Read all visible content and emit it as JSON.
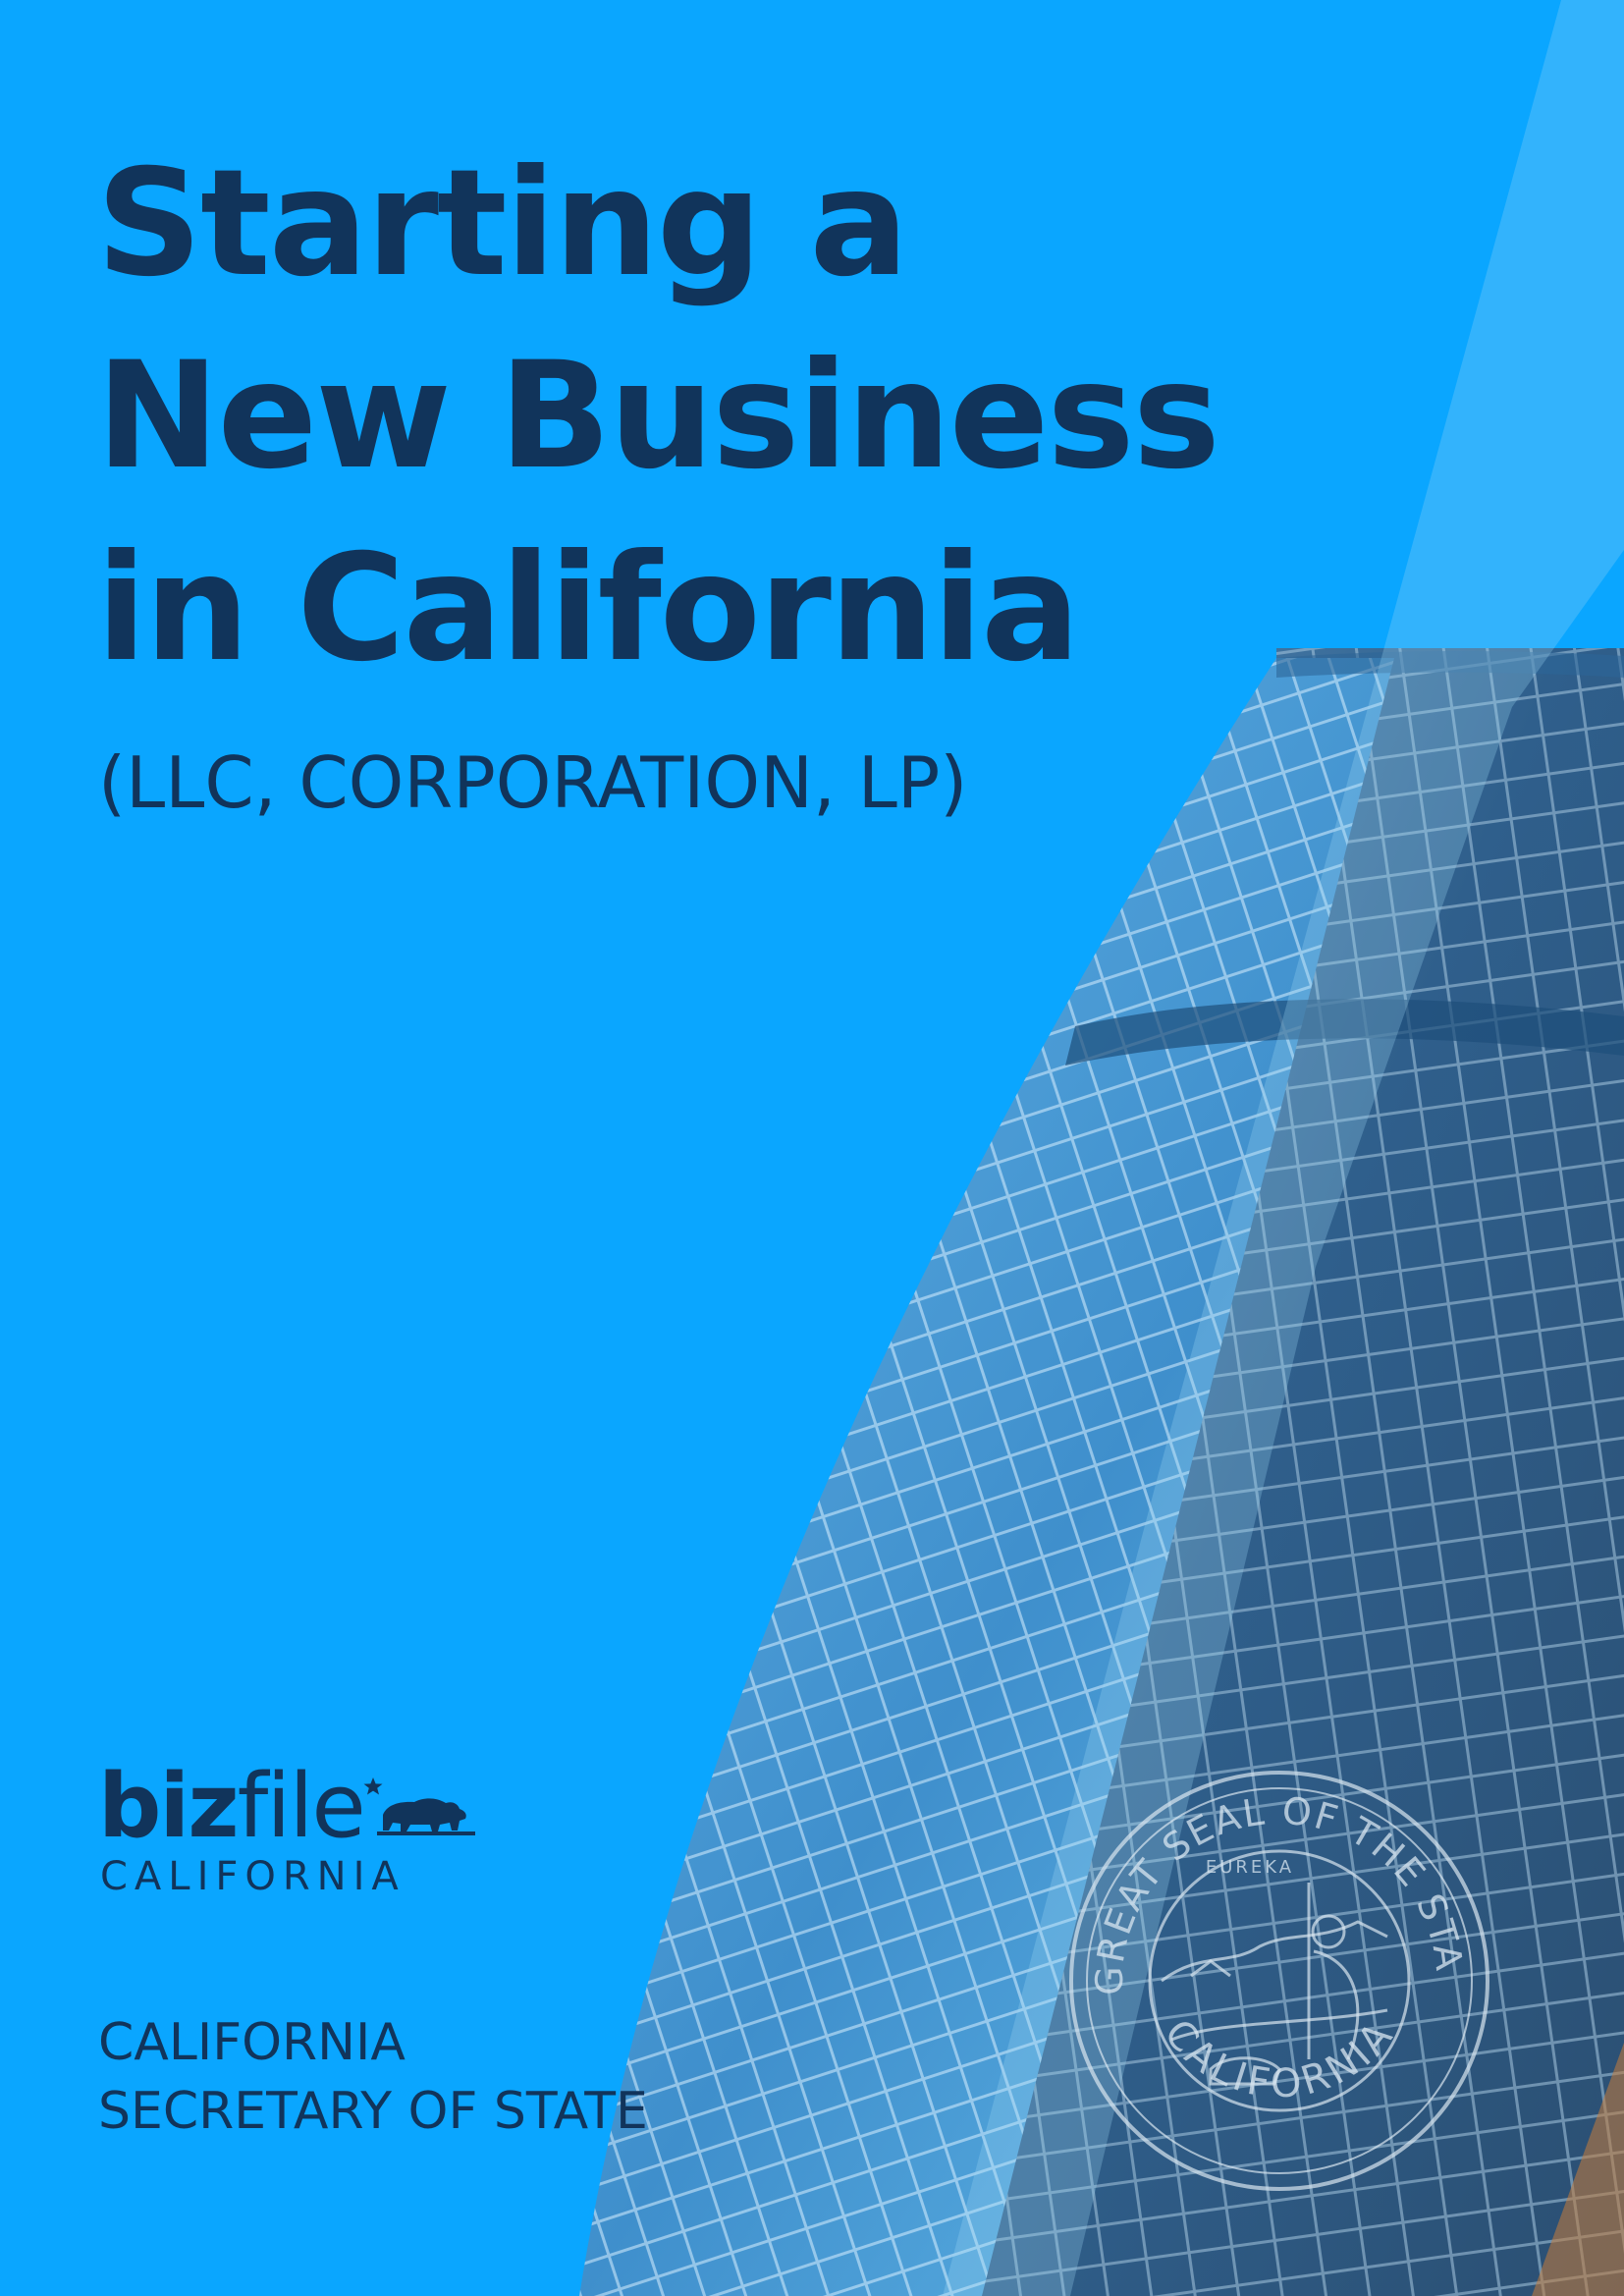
{
  "cover": {
    "title_lines": [
      "Starting a",
      "New Business",
      "in California"
    ],
    "subtitle": "(LLC, CORPORATION, LP)"
  },
  "logo": {
    "word_bold": "biz",
    "word_regular": "file",
    "subline": "CALIFORNIA",
    "icon": "star-bear-icon"
  },
  "agency": {
    "line1": "CALIFORNIA",
    "line2": "SECRETARY OF STATE"
  },
  "seal": {
    "top_text": "THE GREAT SEAL OF THE STATE OF",
    "bottom_text": "CALIFORNIA",
    "motto": "EUREKA"
  },
  "colors": {
    "background": "#0aa6ff",
    "text": "#11345b",
    "glass_dark": "#3a6e98",
    "glass_light": "#5cc0f2"
  }
}
